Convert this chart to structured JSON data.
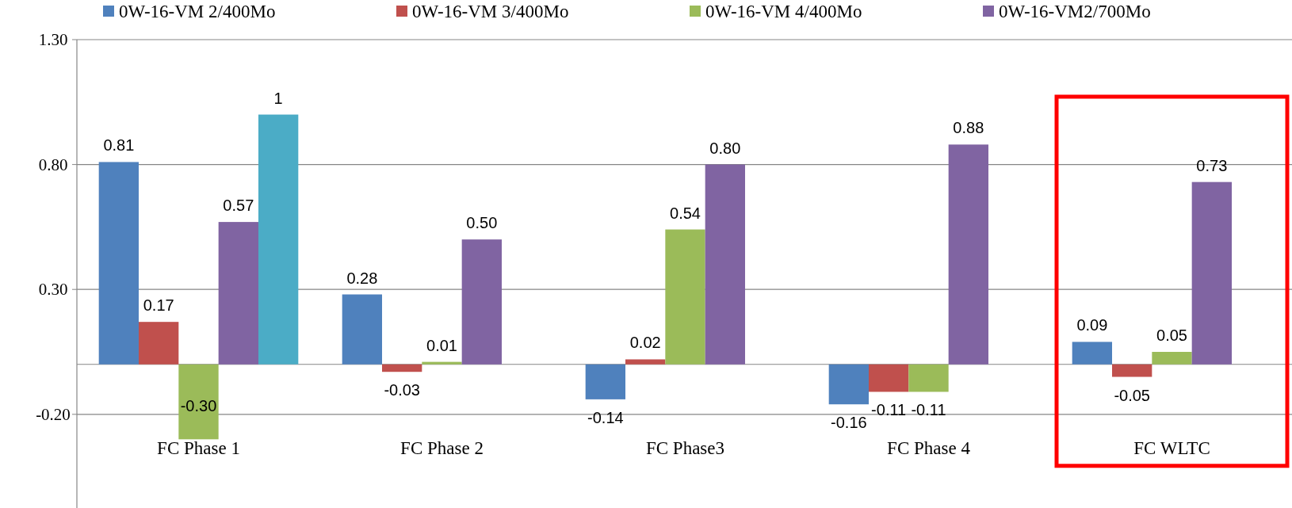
{
  "chart_data": {
    "type": "bar",
    "categories": [
      "FC Phase 1",
      "FC Phase 2",
      "FC Phase3",
      "FC Phase 4",
      "FC WLTC"
    ],
    "series": [
      {
        "name": "0W-16-VM 2/400Mo",
        "color": "#4f81bd",
        "values": [
          0.81,
          0.28,
          -0.14,
          -0.16,
          0.09
        ],
        "value_labels": [
          "0.81",
          "0.28",
          "-0.14",
          "-0.16",
          "0.09"
        ]
      },
      {
        "name": "0W-16-VM 3/400Mo",
        "color": "#c0504d",
        "values": [
          0.17,
          -0.03,
          0.02,
          -0.11,
          -0.05
        ],
        "value_labels": [
          "0.17",
          "-0.03",
          "0.02",
          "-0.11",
          "-0.05"
        ]
      },
      {
        "name": "0W-16-VM 4/400Mo",
        "color": "#9bbb59",
        "values": [
          -0.3,
          0.01,
          0.54,
          -0.11,
          0.05
        ],
        "value_labels": [
          "-0.30",
          "0.01",
          "0.54",
          "-0.11",
          "0.05"
        ]
      },
      {
        "name": "0W-16-VM2/700Mo",
        "color": "#8064a2",
        "values": [
          0.57,
          0.5,
          0.8,
          0.88,
          0.73
        ],
        "value_labels": [
          "0.57",
          "0.50",
          "0.80",
          "0.88",
          "0.73"
        ]
      },
      {
        "color": "#4bacc6",
        "values": [
          1,
          null,
          null,
          null,
          null
        ],
        "value_labels": [
          "1",
          null,
          null,
          null,
          null
        ]
      }
    ],
    "ylim": [
      -0.575,
      1.3
    ],
    "yticks": [
      {
        "value": 1.3,
        "label": "1.30"
      },
      {
        "value": 0.8,
        "label": "0.80"
      },
      {
        "value": 0.3,
        "label": "0.30"
      },
      {
        "value": -0.2,
        "label": "-0.20"
      }
    ],
    "grid": "y",
    "legend": "top"
  }
}
